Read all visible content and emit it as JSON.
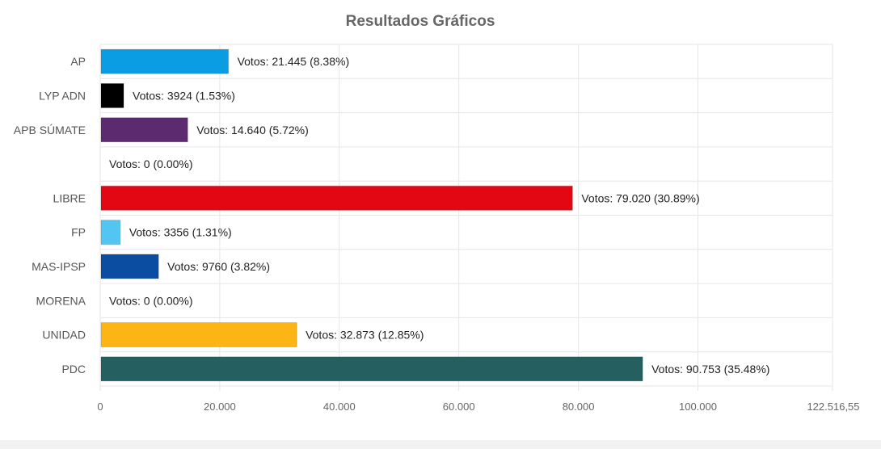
{
  "chart_data": {
    "type": "bar",
    "orientation": "horizontal",
    "title": "Resultados Gráficos",
    "xlabel": "",
    "ylabel": "",
    "xlim": [
      0,
      122516.55
    ],
    "grid": true,
    "x_ticks": [
      {
        "value": 0,
        "label": "0"
      },
      {
        "value": 20000,
        "label": "20.000"
      },
      {
        "value": 40000,
        "label": "40.000"
      },
      {
        "value": 60000,
        "label": "60.000"
      },
      {
        "value": 80000,
        "label": "80.000"
      },
      {
        "value": 100000,
        "label": "100.000"
      },
      {
        "value": 122516.55,
        "label": "122.516,55"
      }
    ],
    "categories": [
      "AP",
      "LYP ADN",
      "APB SÚMATE",
      "",
      "LIBRE",
      "FP",
      "MAS-IPSP",
      "MORENA",
      "UNIDAD",
      "PDC"
    ],
    "values": [
      21445,
      3924,
      14640,
      0,
      79020,
      3356,
      9760,
      0,
      32873,
      90753
    ],
    "data_labels": [
      "Votos: 21.445 (8.38%)",
      "Votos: 3924 (1.53%)",
      "Votos: 14.640 (5.72%)",
      "Votos: 0 (0.00%)",
      "Votos: 79.020 (30.89%)",
      "Votos: 3356 (1.31%)",
      "Votos: 9760 (3.82%)",
      "Votos: 0 (0.00%)",
      "Votos: 32.873 (12.85%)",
      "Votos: 90.753 (35.48%)"
    ],
    "colors": [
      "#0b9de3",
      "#000000",
      "#5b2a6f",
      "#ffffff",
      "#e30613",
      "#52c5f2",
      "#0a4da1",
      "#ffffff",
      "#fdb515",
      "#255f5f"
    ]
  }
}
